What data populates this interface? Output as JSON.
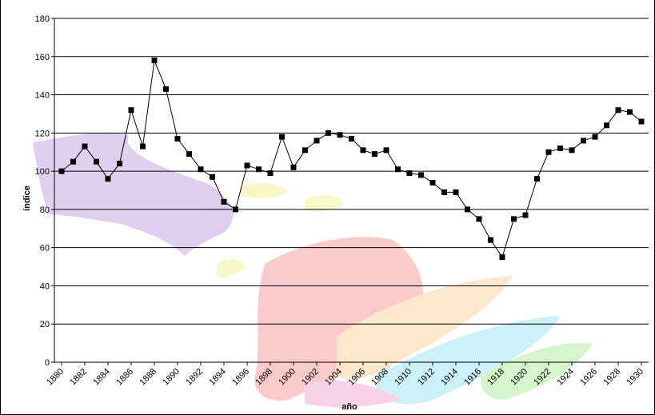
{
  "chart_data": {
    "type": "line",
    "title": "",
    "xlabel": "año",
    "ylabel": "índice",
    "ylim": [
      0,
      180
    ],
    "yticks": [
      0,
      20,
      40,
      60,
      80,
      100,
      120,
      140,
      160,
      180
    ],
    "xlim": [
      1880,
      1930
    ],
    "xticks": [
      1880,
      1882,
      1884,
      1886,
      1888,
      1890,
      1892,
      1894,
      1896,
      1898,
      1900,
      1902,
      1904,
      1906,
      1908,
      1910,
      1912,
      1914,
      1916,
      1918,
      1920,
      1922,
      1924,
      1926,
      1928,
      1930
    ],
    "grid": true,
    "legend": "none",
    "series": [
      {
        "color": "#000000",
        "marker": "square",
        "x": [
          1880,
          1881,
          1882,
          1883,
          1884,
          1885,
          1886,
          1887,
          1888,
          1889,
          1890,
          1891,
          1892,
          1893,
          1894,
          1895,
          1896,
          1897,
          1898,
          1899,
          1900,
          1901,
          1902,
          1903,
          1904,
          1905,
          1906,
          1907,
          1908,
          1909,
          1910,
          1911,
          1912,
          1913,
          1914,
          1915,
          1916,
          1917,
          1918,
          1919,
          1920,
          1921,
          1922,
          1923,
          1924,
          1925,
          1926,
          1927,
          1928,
          1929,
          1930
        ],
        "values": [
          100,
          105,
          113,
          105,
          96,
          104,
          132,
          113,
          158,
          143,
          117,
          109,
          101,
          97,
          84,
          80,
          103,
          101,
          99,
          118,
          102,
          111,
          116,
          120,
          119,
          117,
          111,
          109,
          111,
          101,
          99,
          98,
          94,
          89,
          89,
          80,
          75,
          64,
          55,
          75,
          77,
          96,
          110,
          112,
          111,
          116,
          118,
          124,
          132,
          131,
          126
        ]
      }
    ]
  }
}
